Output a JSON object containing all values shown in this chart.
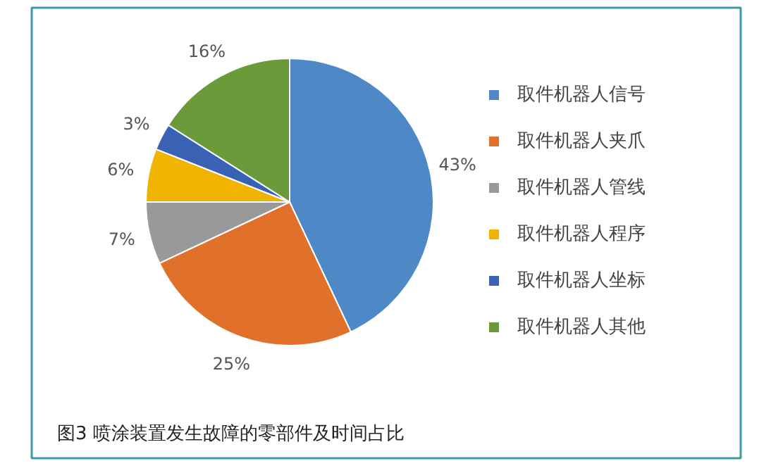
{
  "chart_data": {
    "type": "pie",
    "title": "图3 喷涂装置发生故障的零部件及时间占比",
    "categories": [
      "取件机器人信号",
      "取件机器人夹爪",
      "取件机器人管线",
      "取件机器人程序",
      "取件机器人坐标",
      "取件机器人其他"
    ],
    "values": [
      43,
      25,
      7,
      6,
      3,
      16
    ],
    "colors": [
      "#4f88c6",
      "#e0702a",
      "#999999",
      "#f0b400",
      "#3a62b4",
      "#6a9a3a"
    ],
    "value_labels": [
      "43%",
      "25%",
      "7%",
      "6%",
      "3%",
      "16%"
    ],
    "legend": "right"
  }
}
